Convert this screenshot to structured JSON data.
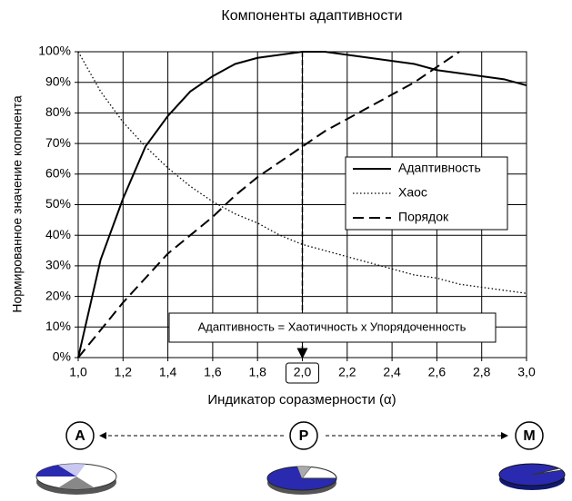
{
  "chart_data": {
    "type": "line",
    "title": "Компоненты адаптивности",
    "xlabel": "Индикатор соразмерности (α)",
    "ylabel": "Нормированное значение копонента",
    "x": [
      1.0,
      1.1,
      1.2,
      1.3,
      1.4,
      1.5,
      1.6,
      1.7,
      1.8,
      1.9,
      2.0,
      2.1,
      2.2,
      2.3,
      2.4,
      2.5,
      2.6,
      2.7,
      2.8,
      2.9,
      3.0
    ],
    "xlim": [
      1,
      3
    ],
    "xticks": [
      {
        "value": 1,
        "label": "1,0"
      },
      {
        "value": 1.2,
        "label": "1,2"
      },
      {
        "value": 1.4,
        "label": "1,4"
      },
      {
        "value": 1.6,
        "label": "1,6"
      },
      {
        "value": 1.8,
        "label": "1,8"
      },
      {
        "value": 2,
        "label": "2,0"
      },
      {
        "value": 2.2,
        "label": "2,2"
      },
      {
        "value": 2.4,
        "label": "2,4"
      },
      {
        "value": 2.6,
        "label": "2,6"
      },
      {
        "value": 2.8,
        "label": "2,8"
      },
      {
        "value": 3,
        "label": "3,0"
      }
    ],
    "ylim": [
      0,
      100
    ],
    "yticks": [
      {
        "value": 0,
        "label": "0%"
      },
      {
        "value": 10,
        "label": "10%"
      },
      {
        "value": 20,
        "label": "20%"
      },
      {
        "value": 30,
        "label": "30%"
      },
      {
        "value": 40,
        "label": "40%"
      },
      {
        "value": 50,
        "label": "50%"
      },
      {
        "value": 60,
        "label": "60%"
      },
      {
        "value": 70,
        "label": "70%"
      },
      {
        "value": 80,
        "label": "80%"
      },
      {
        "value": 90,
        "label": "90%"
      },
      {
        "value": 100,
        "label": "100%"
      }
    ],
    "grid": true,
    "legend": "right",
    "series": [
      {
        "name": "Адаптивность",
        "color": "#000000",
        "dash": "solid",
        "values": [
          0,
          32,
          52,
          69,
          79,
          87,
          92,
          96,
          98,
          99,
          100,
          100,
          99,
          98,
          97,
          96,
          94,
          93,
          92,
          91,
          89
        ]
      },
      {
        "name": "Хаос",
        "color": "#000000",
        "dash": "dotted",
        "values": [
          100,
          87,
          77,
          69,
          62,
          56,
          51,
          47,
          44,
          40,
          37,
          35,
          33,
          31,
          29,
          27,
          26,
          24,
          23,
          22,
          21
        ]
      },
      {
        "name": "Порядок",
        "color": "#000000",
        "dash": "dashed",
        "values": [
          0,
          9,
          18,
          26,
          34,
          40,
          46,
          53,
          59,
          64,
          69,
          74,
          78,
          82,
          86,
          90,
          95,
          100,
          null,
          null,
          null
        ]
      }
    ],
    "annotation": "Адаптивность = Хаотичность х Упорядоченность",
    "vline": 2
  },
  "stages": [
    "A",
    "P",
    "M"
  ]
}
